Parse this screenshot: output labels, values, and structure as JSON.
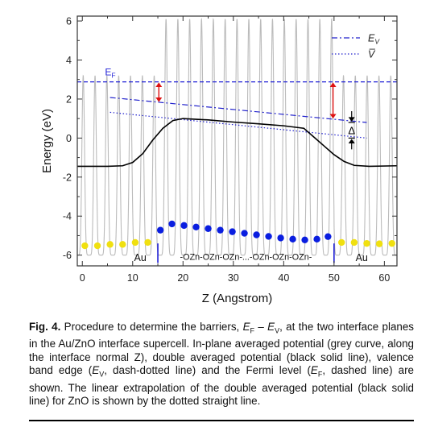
{
  "chart_data": {
    "type": "line",
    "xlabel": "Z (Angstrom)",
    "ylabel": "Energy (eV)",
    "xlim": [
      -1,
      62.5
    ],
    "ylim": [
      -6.55,
      6.25
    ],
    "xticks": [
      0,
      10,
      20,
      30,
      40,
      50,
      60
    ],
    "yticks": [
      -6,
      -4,
      -2,
      0,
      2,
      4,
      6
    ],
    "grid": false,
    "legend_position": "top-right",
    "legend": [
      {
        "label": "E",
        "sub": "V",
        "style": "dash-dot",
        "color": "#2222cc"
      },
      {
        "label": "V̅",
        "sub": "",
        "style": "dotted",
        "color": "#2222cc"
      }
    ],
    "fermi": {
      "label": "E",
      "sub": "F",
      "y": 2.88,
      "color": "#1f1fd6"
    },
    "valence_band_edge": {
      "points": [
        [
          5.5,
          2.08
        ],
        [
          56.5,
          0.8
        ]
      ],
      "color": "#2222cc"
    },
    "extrapolated_potential": {
      "points": [
        [
          5.5,
          1.32
        ],
        [
          56.5,
          0.0
        ]
      ],
      "color": "#2222cc"
    },
    "double_averaged_potential": {
      "color": "#000000",
      "points": [
        [
          -1.0,
          -1.45
        ],
        [
          5.0,
          -1.45
        ],
        [
          8.0,
          -1.42
        ],
        [
          10.0,
          -1.25
        ],
        [
          12.0,
          -0.8
        ],
        [
          14.0,
          -0.1
        ],
        [
          16.0,
          0.5
        ],
        [
          18.0,
          0.9
        ],
        [
          20.0,
          1.0
        ],
        [
          25.0,
          0.93
        ],
        [
          30.0,
          0.82
        ],
        [
          35.0,
          0.73
        ],
        [
          40.0,
          0.63
        ],
        [
          44.0,
          0.5
        ],
        [
          46.0,
          0.05
        ],
        [
          48.0,
          -0.4
        ],
        [
          50.0,
          -0.85
        ],
        [
          52.0,
          -1.2
        ],
        [
          54.0,
          -1.4
        ],
        [
          57.0,
          -1.45
        ],
        [
          62.5,
          -1.42
        ]
      ]
    },
    "planar_averaged_potential": {
      "color": "#bbbbbb",
      "period": 2.35,
      "minima": -6.0,
      "regions": [
        {
          "name": "Au",
          "x": [
            -1,
            15
          ],
          "max": 3.2
        },
        {
          "name": "ZnO",
          "x": [
            15,
            50
          ],
          "max": 6.1
        },
        {
          "name": "Au",
          "x": [
            50,
            62.5
          ],
          "max": 3.2
        }
      ]
    },
    "interfaces_x": [
      15,
      50
    ],
    "annotations": [
      {
        "type": "double-arrow",
        "x": 15.2,
        "y": [
          2.85,
          1.85
        ],
        "color": "#dd1111"
      },
      {
        "type": "double-arrow",
        "x": 49.8,
        "y": [
          2.85,
          1.0
        ],
        "color": "#dd1111"
      },
      {
        "type": "delta",
        "text": "Δ",
        "x": 53.5,
        "y": [
          0.8,
          0.0
        ],
        "color": "#000000"
      }
    ],
    "region_labels": [
      {
        "text": "Au",
        "x": 11.5,
        "y": -6.05
      },
      {
        "text": "-OZn-OZn-OZn-...-OZn-OZn-OZn-",
        "x": 32.5,
        "y": -6.0
      },
      {
        "text": "Au",
        "x": 55.5,
        "y": -6.05
      }
    ],
    "atoms": [
      {
        "x": 0.5,
        "y": -5.52,
        "color": "#f0e010"
      },
      {
        "x": 3.0,
        "y": -5.52,
        "color": "#f0e010"
      },
      {
        "x": 5.5,
        "y": -5.45,
        "color": "#f0e010"
      },
      {
        "x": 8.0,
        "y": -5.45,
        "color": "#f0e010"
      },
      {
        "x": 10.5,
        "y": -5.35,
        "color": "#f0e010"
      },
      {
        "x": 13.0,
        "y": -5.35,
        "color": "#f0e010"
      },
      {
        "x": 15.5,
        "y": -4.72,
        "color": "#0a1ee0"
      },
      {
        "x": 17.8,
        "y": -4.4,
        "color": "#0a1ee0"
      },
      {
        "x": 20.2,
        "y": -4.48,
        "color": "#0a1ee0"
      },
      {
        "x": 22.6,
        "y": -4.56,
        "color": "#0a1ee0"
      },
      {
        "x": 25.0,
        "y": -4.64,
        "color": "#0a1ee0"
      },
      {
        "x": 27.4,
        "y": -4.72,
        "color": "#0a1ee0"
      },
      {
        "x": 29.8,
        "y": -4.8,
        "color": "#0a1ee0"
      },
      {
        "x": 32.2,
        "y": -4.88,
        "color": "#0a1ee0"
      },
      {
        "x": 34.6,
        "y": -4.96,
        "color": "#0a1ee0"
      },
      {
        "x": 37.0,
        "y": -5.04,
        "color": "#0a1ee0"
      },
      {
        "x": 39.4,
        "y": -5.12,
        "color": "#0a1ee0"
      },
      {
        "x": 41.8,
        "y": -5.18,
        "color": "#0a1ee0"
      },
      {
        "x": 44.2,
        "y": -5.22,
        "color": "#0a1ee0"
      },
      {
        "x": 46.6,
        "y": -5.18,
        "color": "#0a1ee0"
      },
      {
        "x": 48.8,
        "y": -5.05,
        "color": "#0a1ee0"
      },
      {
        "x": 51.5,
        "y": -5.35,
        "color": "#f0e010"
      },
      {
        "x": 54.0,
        "y": -5.35,
        "color": "#f0e010"
      },
      {
        "x": 56.5,
        "y": -5.4,
        "color": "#f0e010"
      },
      {
        "x": 59.0,
        "y": -5.42,
        "color": "#f0e010"
      },
      {
        "x": 61.5,
        "y": -5.4,
        "color": "#f0e010"
      }
    ]
  },
  "caption": {
    "fig": "Fig. 4.",
    "p1": " Procedure to determine the barriers, ",
    "ef": "E",
    "ef_sub": "F",
    "dash": " – ",
    "ev": "E",
    "ev_sub": "V",
    "p2": ", at the two interface planes in the Au/ZnO interface supercell. In-plane averaged potential (grey curve, along the interface normal Z), double averaged potential (black solid line), valence band edge (",
    "ev2": "E",
    "ev2_sub": "V",
    "p3": ", dash-dotted line) and the Fermi level (",
    "ef2": "E",
    "ef2_sub": "F",
    "p4": ", dashed line) are shown. The linear extrapolation of the double averaged potential (black solid line) for ZnO is shown by the dotted straight line."
  }
}
